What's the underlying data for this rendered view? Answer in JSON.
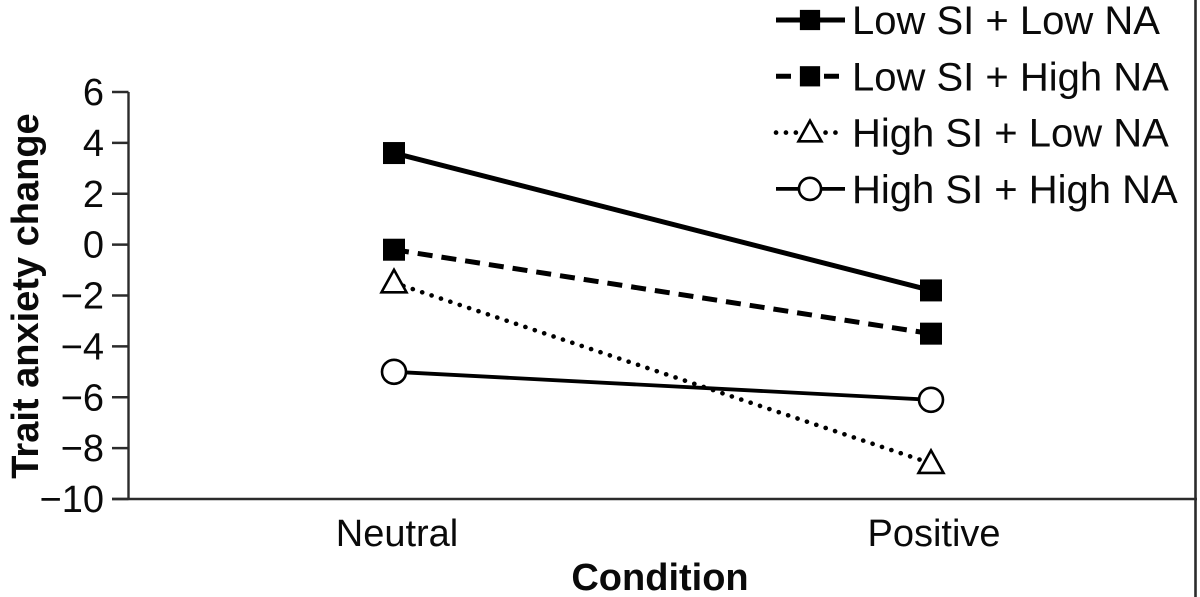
{
  "figure": {
    "background": "#ffffff",
    "ink_color": "#0a0a0a",
    "axis_color": "#2b2b2b"
  },
  "chart_data": {
    "type": "line",
    "title": "",
    "xlabel": "Condition",
    "ylabel": "Trait anxiety change",
    "categories": [
      "Neutral",
      "Positive"
    ],
    "ylim": [
      -10,
      6
    ],
    "yticks": [
      6,
      4,
      2,
      0,
      -2,
      -4,
      -6,
      -8,
      -10
    ],
    "ytick_labels": [
      "6",
      "4",
      "2",
      "0",
      "−2",
      "−4",
      "−6",
      "−8",
      "−10"
    ],
    "grid": false,
    "legend_position": "top-right",
    "series": [
      {
        "name": "Low SI + Low NA",
        "values": [
          3.6,
          -1.8
        ],
        "line": "solid",
        "marker": "filled-square",
        "color": "#000000"
      },
      {
        "name": "Low SI + High NA",
        "values": [
          -0.2,
          -3.5
        ],
        "line": "dashed",
        "marker": "filled-square",
        "color": "#000000"
      },
      {
        "name": "High SI + Low NA",
        "values": [
          -1.5,
          -8.6
        ],
        "line": "dotted",
        "marker": "open-triangle",
        "color": "#000000"
      },
      {
        "name": "High SI + High NA",
        "values": [
          -5.0,
          -6.1
        ],
        "line": "solid-thin",
        "marker": "open-circle",
        "color": "#000000"
      }
    ]
  }
}
